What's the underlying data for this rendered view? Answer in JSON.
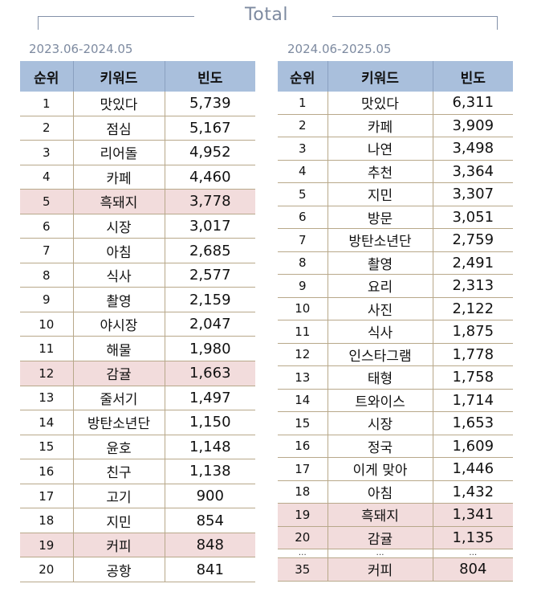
{
  "title": "Total",
  "left": {
    "period": "2023.06-2024.05",
    "headers": [
      "순위",
      "키워드",
      "빈도"
    ],
    "rows": [
      {
        "rank": "1",
        "keyword": "맛있다",
        "freq": "5,739",
        "hl": false
      },
      {
        "rank": "2",
        "keyword": "점심",
        "freq": "5,167",
        "hl": false
      },
      {
        "rank": "3",
        "keyword": "리어돌",
        "freq": "4,952",
        "hl": false
      },
      {
        "rank": "4",
        "keyword": "카페",
        "freq": "4,460",
        "hl": false
      },
      {
        "rank": "5",
        "keyword": "흑돼지",
        "freq": "3,778",
        "hl": true
      },
      {
        "rank": "6",
        "keyword": "시장",
        "freq": "3,017",
        "hl": false
      },
      {
        "rank": "7",
        "keyword": "아침",
        "freq": "2,685",
        "hl": false
      },
      {
        "rank": "8",
        "keyword": "식사",
        "freq": "2,577",
        "hl": false
      },
      {
        "rank": "9",
        "keyword": "촬영",
        "freq": "2,159",
        "hl": false
      },
      {
        "rank": "10",
        "keyword": "야시장",
        "freq": "2,047",
        "hl": false
      },
      {
        "rank": "11",
        "keyword": "해물",
        "freq": "1,980",
        "hl": false
      },
      {
        "rank": "12",
        "keyword": "감귤",
        "freq": "1,663",
        "hl": true
      },
      {
        "rank": "13",
        "keyword": "줄서기",
        "freq": "1,497",
        "hl": false
      },
      {
        "rank": "14",
        "keyword": "방탄소년단",
        "freq": "1,150",
        "hl": false
      },
      {
        "rank": "15",
        "keyword": "윤호",
        "freq": "1,148",
        "hl": false
      },
      {
        "rank": "16",
        "keyword": "친구",
        "freq": "1,138",
        "hl": false
      },
      {
        "rank": "17",
        "keyword": "고기",
        "freq": "900",
        "hl": false
      },
      {
        "rank": "18",
        "keyword": "지민",
        "freq": "854",
        "hl": false
      },
      {
        "rank": "19",
        "keyword": "커피",
        "freq": "848",
        "hl": true
      },
      {
        "rank": "20",
        "keyword": "공항",
        "freq": "841",
        "hl": false
      }
    ]
  },
  "right": {
    "period": "2024.06-2025.05",
    "headers": [
      "순위",
      "키워드",
      "빈도"
    ],
    "rows": [
      {
        "rank": "1",
        "keyword": "맛있다",
        "freq": "6,311",
        "hl": false
      },
      {
        "rank": "2",
        "keyword": "카페",
        "freq": "3,909",
        "hl": false
      },
      {
        "rank": "3",
        "keyword": "나연",
        "freq": "3,498",
        "hl": false
      },
      {
        "rank": "4",
        "keyword": "추천",
        "freq": "3,364",
        "hl": false
      },
      {
        "rank": "5",
        "keyword": "지민",
        "freq": "3,307",
        "hl": false
      },
      {
        "rank": "6",
        "keyword": "방문",
        "freq": "3,051",
        "hl": false
      },
      {
        "rank": "7",
        "keyword": "방탄소년단",
        "freq": "2,759",
        "hl": false
      },
      {
        "rank": "8",
        "keyword": "촬영",
        "freq": "2,491",
        "hl": false
      },
      {
        "rank": "9",
        "keyword": "요리",
        "freq": "2,313",
        "hl": false
      },
      {
        "rank": "10",
        "keyword": "사진",
        "freq": "2,122",
        "hl": false
      },
      {
        "rank": "11",
        "keyword": "식사",
        "freq": "1,875",
        "hl": false
      },
      {
        "rank": "12",
        "keyword": "인스타그램",
        "freq": "1,778",
        "hl": false
      },
      {
        "rank": "13",
        "keyword": "태형",
        "freq": "1,758",
        "hl": false
      },
      {
        "rank": "14",
        "keyword": "트와이스",
        "freq": "1,714",
        "hl": false
      },
      {
        "rank": "15",
        "keyword": "시장",
        "freq": "1,653",
        "hl": false
      },
      {
        "rank": "16",
        "keyword": "정국",
        "freq": "1,609",
        "hl": false
      },
      {
        "rank": "17",
        "keyword": "이게 맞아",
        "freq": "1,446",
        "hl": false
      },
      {
        "rank": "18",
        "keyword": "아침",
        "freq": "1,432",
        "hl": false
      },
      {
        "rank": "19",
        "keyword": "흑돼지",
        "freq": "1,341",
        "hl": true
      },
      {
        "rank": "20",
        "keyword": "감귤",
        "freq": "1,135",
        "hl": true
      },
      {
        "rank": "…",
        "keyword": "…",
        "freq": "…",
        "hl": false,
        "dots": true
      },
      {
        "rank": "35",
        "keyword": "커피",
        "freq": "804",
        "hl": true
      }
    ]
  }
}
